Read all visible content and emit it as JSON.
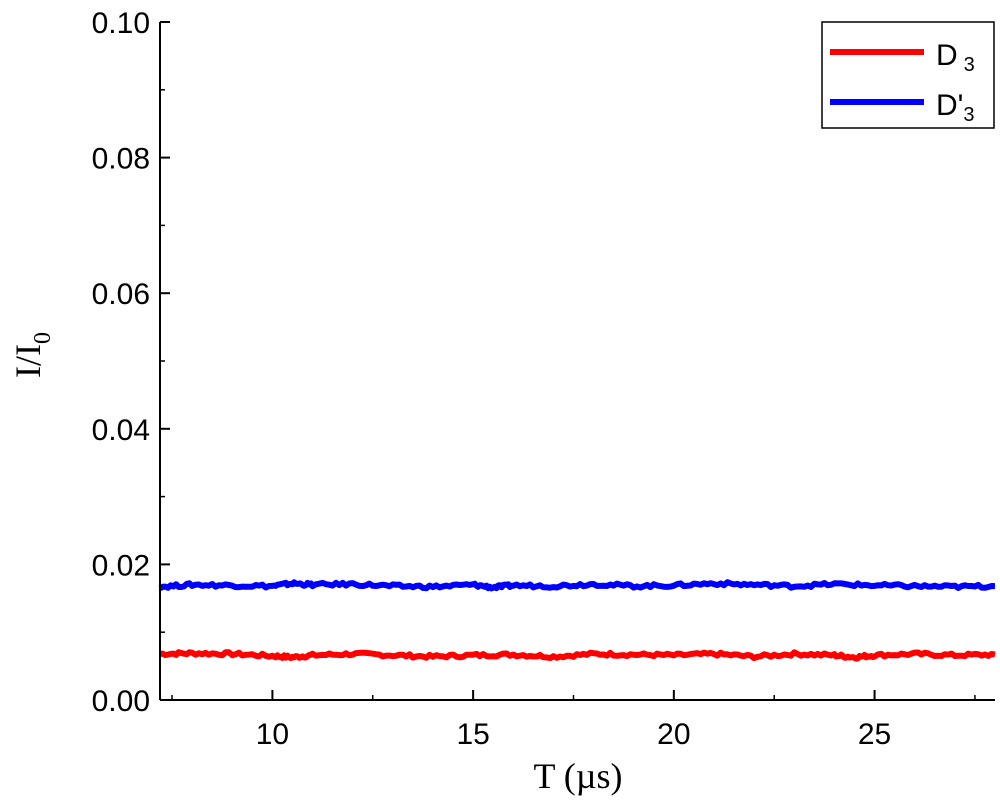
{
  "chart_data": {
    "type": "line",
    "title": "",
    "xlabel": "T (µs)",
    "ylabel": {
      "main": "I/I",
      "sub": "0"
    },
    "xlim": [
      7.2,
      28.0
    ],
    "ylim": [
      0.0,
      0.1
    ],
    "xticks": [
      10,
      15,
      20,
      25
    ],
    "xtick_labels": [
      "10",
      "15",
      "20",
      "25"
    ],
    "yticks": [
      0.0,
      0.02,
      0.04,
      0.06,
      0.08,
      0.1
    ],
    "ytick_labels": [
      "0.00",
      "0.02",
      "0.04",
      "0.06",
      "0.08",
      "0.10"
    ],
    "grid": false,
    "legend": {
      "position": "top-right"
    },
    "series": [
      {
        "name": "D 3",
        "legend_main": "D",
        "legend_sub": "3",
        "color": "#ff0000",
        "x": [
          7.2,
          8.0,
          9.0,
          10.0,
          10.5,
          11.0,
          12.0,
          13.0,
          14.0,
          15.0,
          16.0,
          17.0,
          18.0,
          19.0,
          20.0,
          21.0,
          22.0,
          23.0,
          24.0,
          24.5,
          25.0,
          26.0,
          27.0,
          28.0
        ],
        "y": [
          0.0068,
          0.0069,
          0.0068,
          0.0065,
          0.0063,
          0.0066,
          0.0068,
          0.0066,
          0.0064,
          0.0066,
          0.0067,
          0.0064,
          0.0068,
          0.0067,
          0.0066,
          0.0068,
          0.0064,
          0.0068,
          0.0066,
          0.0063,
          0.0066,
          0.0068,
          0.0066,
          0.0067
        ]
      },
      {
        "name": "D'3",
        "legend_main": "D'",
        "legend_sub": "3",
        "color": "#0000ff",
        "x": [
          7.2,
          8.0,
          9.0,
          10.0,
          10.5,
          11.0,
          12.0,
          13.0,
          14.0,
          15.0,
          15.5,
          16.0,
          17.0,
          18.0,
          19.0,
          20.0,
          21.0,
          22.0,
          23.0,
          24.0,
          25.0,
          26.0,
          27.0,
          28.0
        ],
        "y": [
          0.0167,
          0.017,
          0.0169,
          0.0168,
          0.0172,
          0.017,
          0.0171,
          0.0168,
          0.0167,
          0.017,
          0.0166,
          0.0169,
          0.0168,
          0.0171,
          0.0168,
          0.0169,
          0.0172,
          0.017,
          0.0168,
          0.0171,
          0.0169,
          0.0168,
          0.0167,
          0.0168
        ]
      }
    ]
  }
}
